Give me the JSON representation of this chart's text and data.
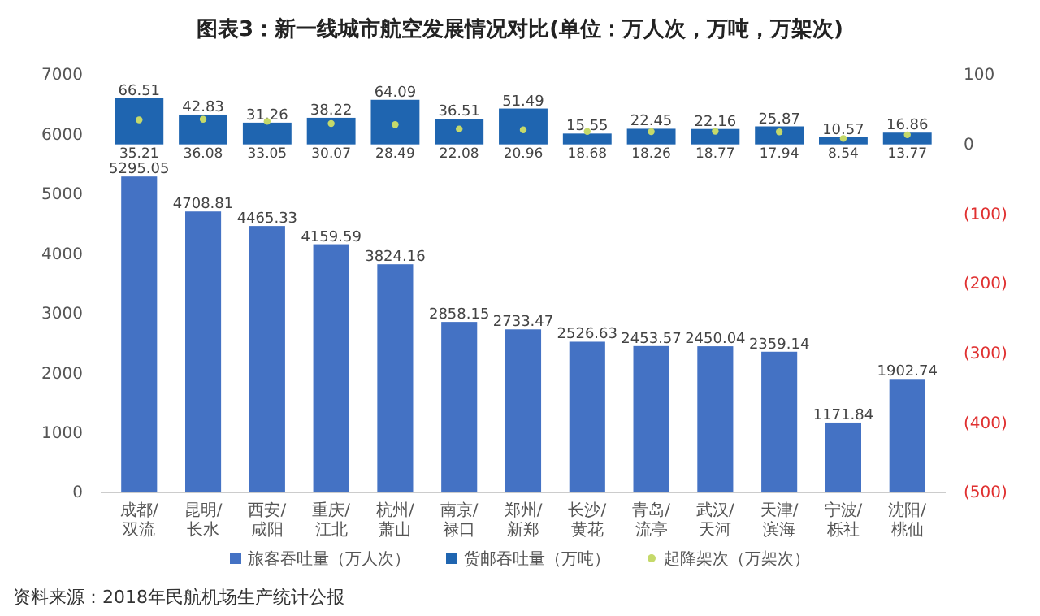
{
  "chart_data": {
    "type": "bar",
    "title": "图表3：新一线城市航空发展情况对比(单位：万人次，万吨，万架次)",
    "categories": [
      "成都/双流",
      "昆明/长水",
      "西安/咸阳",
      "重庆/江北",
      "杭州/萧山",
      "南京/禄口",
      "郑州/新郑",
      "长沙/黄花",
      "青岛/流亭",
      "武汉/天河",
      "天津/滨海",
      "宁波/栎社",
      "沈阳/桃仙"
    ],
    "series": [
      {
        "name": "旅客吞吐量（万人次）",
        "type": "bar",
        "color": "#4472c4",
        "values": [
          5295.05,
          4708.81,
          4465.33,
          4159.59,
          3824.16,
          2858.15,
          2733.47,
          2526.63,
          2453.57,
          2450.04,
          2359.14,
          1171.84,
          1902.74
        ]
      },
      {
        "name": "货邮吞吐量（万吨）",
        "type": "bar",
        "axis": "y2",
        "color": "#1f65b0",
        "values": [
          66.51,
          42.83,
          31.26,
          38.22,
          64.09,
          36.51,
          51.49,
          15.55,
          22.45,
          22.16,
          25.87,
          10.57,
          16.86
        ]
      },
      {
        "name": "起降架次（万架次）",
        "type": "scatter",
        "axis": "y2",
        "color": "#c5d96a",
        "values": [
          35.21,
          36.08,
          33.05,
          30.07,
          28.49,
          22.08,
          20.96,
          18.68,
          18.26,
          18.77,
          17.94,
          8.54,
          13.77
        ]
      }
    ],
    "ylim": [
      0,
      7000
    ],
    "yticks": [
      0,
      1000,
      2000,
      3000,
      4000,
      5000,
      6000,
      7000
    ],
    "y2lim": [
      -500,
      100
    ],
    "y2ticks": [
      {
        "value": -500,
        "label": "(500)"
      },
      {
        "value": -400,
        "label": "(400)"
      },
      {
        "value": -300,
        "label": "(300)"
      },
      {
        "value": -200,
        "label": "(200)"
      },
      {
        "value": -100,
        "label": "(100)"
      },
      0,
      100
    ],
    "data_labels": true,
    "legend": "bottom",
    "marker": "circle",
    "grid": false,
    "annotations": [
      "资料来源：2018年民航机场生产统计公报"
    ]
  }
}
